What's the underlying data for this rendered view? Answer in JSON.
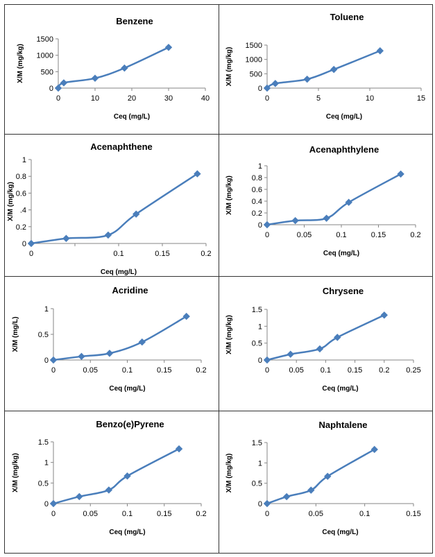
{
  "colors": {
    "series": "#4A7EBB",
    "axis": "#868686"
  },
  "chart_data": [
    {
      "type": "line",
      "title": "Benzene",
      "xlabel": "Ceq (mg/L)",
      "ylabel": "X/M (mg/kg)",
      "xlim": [
        0,
        40
      ],
      "ylim": [
        0,
        1500
      ],
      "xticks": [
        0,
        10,
        20,
        30,
        40
      ],
      "yticks": [
        0,
        500,
        1000,
        1500
      ],
      "x": [
        0,
        1.5,
        10,
        18,
        30
      ],
      "y": [
        0,
        160,
        300,
        610,
        1240
      ]
    },
    {
      "type": "line",
      "title": "Toluene",
      "xlabel": "Ceq (mg/L)",
      "ylabel": "X/M (mg/kg)",
      "xlim": [
        0,
        15
      ],
      "ylim": [
        0,
        1500
      ],
      "xticks": [
        0,
        5,
        10,
        15
      ],
      "yticks": [
        0,
        500,
        1000,
        1500
      ],
      "x": [
        0,
        0.8,
        3.9,
        6.5,
        11
      ],
      "y": [
        0,
        160,
        310,
        650,
        1300
      ]
    },
    {
      "type": "line",
      "title": "Acenaphthene",
      "xlabel": "Ceq (mg/L)",
      "ylabel": "X/M (mg/kg)",
      "xlim": [
        0,
        0.2
      ],
      "ylim": [
        0,
        1
      ],
      "xticks": [
        0,
        0.05,
        0.1,
        0.15,
        0.2
      ],
      "xtick_labels": [
        "0",
        "",
        "0.1",
        "0.15",
        "0.2"
      ],
      "yticks": [
        0,
        0.2,
        0.4,
        0.6,
        0.8,
        1
      ],
      "ytick_labels": [
        "0",
        "0.2",
        ".4",
        "0.6",
        "0.8",
        "1"
      ],
      "x": [
        0,
        0.04,
        0.088,
        0.12,
        0.19
      ],
      "y": [
        0,
        0.06,
        0.1,
        0.35,
        0.83
      ]
    },
    {
      "type": "line",
      "title": "Acenaphthylene",
      "xlabel": "Ceq (mg/L)",
      "ylabel": "X/M (mg/kg)",
      "xlim": [
        0,
        0.2
      ],
      "ylim": [
        0,
        1
      ],
      "xticks": [
        0,
        0.05,
        0.1,
        0.15,
        0.2
      ],
      "yticks": [
        0,
        0.2,
        0.4,
        0.6,
        0.8,
        1
      ],
      "x": [
        0,
        0.038,
        0.08,
        0.11,
        0.18
      ],
      "y": [
        0,
        0.07,
        0.11,
        0.38,
        0.86
      ]
    },
    {
      "type": "line",
      "title": "Acridine",
      "xlabel": "Ceq (mg/L)",
      "ylabel": "X/M (mg/L)",
      "xlim": [
        0,
        0.2
      ],
      "ylim": [
        0,
        1
      ],
      "xticks": [
        0,
        0.05,
        0.1,
        0.15,
        0.2
      ],
      "yticks": [
        0,
        0.5,
        1
      ],
      "x": [
        0,
        0.038,
        0.076,
        0.12,
        0.18
      ],
      "y": [
        0,
        0.07,
        0.13,
        0.35,
        0.85
      ]
    },
    {
      "type": "line",
      "title": "Chrysene",
      "xlabel": "Ceq (mg/L)",
      "ylabel": "X/M (mg/kg)",
      "xlim": [
        0,
        0.25
      ],
      "ylim": [
        0,
        1.5
      ],
      "xticks": [
        0,
        0.05,
        0.1,
        0.15,
        0.2,
        0.25
      ],
      "yticks": [
        0,
        0.5,
        1,
        1.5
      ],
      "x": [
        0,
        0.04,
        0.09,
        0.12,
        0.2
      ],
      "y": [
        0,
        0.17,
        0.33,
        0.67,
        1.33
      ]
    },
    {
      "type": "line",
      "title": "Benzo(e)Pyrene",
      "xlabel": "Ceq (mg/L)",
      "ylabel": "X/M (mg/kg)",
      "xlim": [
        0,
        0.2
      ],
      "ylim": [
        0,
        1.5
      ],
      "xticks": [
        0,
        0.05,
        0.1,
        0.15,
        0.2
      ],
      "yticks": [
        0,
        0.5,
        1,
        1.5
      ],
      "x": [
        0,
        0.035,
        0.075,
        0.1,
        0.17
      ],
      "y": [
        0,
        0.17,
        0.33,
        0.67,
        1.33
      ]
    },
    {
      "type": "line",
      "title": "Naphtalene",
      "xlabel": "Ceq (mg/L)",
      "ylabel": "X/M (mg/kg)",
      "xlim": [
        0,
        0.15
      ],
      "ylim": [
        0,
        1.5
      ],
      "xticks": [
        0,
        0.05,
        0.1,
        0.15
      ],
      "yticks": [
        0,
        0.5,
        1,
        1.5
      ],
      "x": [
        0,
        0.02,
        0.045,
        0.062,
        0.11
      ],
      "y": [
        0,
        0.17,
        0.33,
        0.67,
        1.33
      ]
    }
  ]
}
